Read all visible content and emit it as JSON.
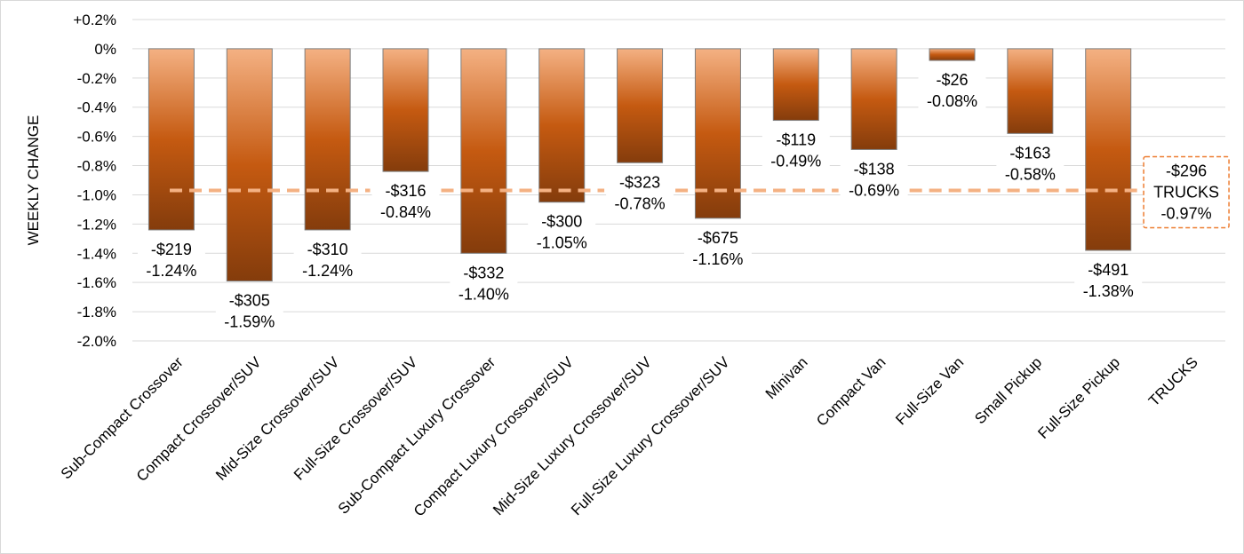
{
  "chart_data": {
    "type": "bar",
    "ylabel": "WEEKLY CHANGE",
    "ylim": [
      -2.0,
      0.2
    ],
    "y_ticks": [
      0.2,
      0.0,
      -0.2,
      -0.4,
      -0.6,
      -0.8,
      -1.0,
      -1.2,
      -1.4,
      -1.6,
      -1.8,
      -2.0
    ],
    "y_tick_labels": [
      "+0.2%",
      "0%",
      "-0.2%",
      "-0.4%",
      "-0.6%",
      "-0.8%",
      "-1.0%",
      "-1.2%",
      "-1.4%",
      "-1.6%",
      "-1.8%",
      "-2.0%"
    ],
    "grid": true,
    "categories": [
      "Sub-Compact Crossover",
      "Compact Crossover/SUV",
      "Mid-Size Crossover/SUV",
      "Full-Size Crossover/SUV",
      "Sub-Compact Luxury Crossover",
      "Compact Luxury Crossover/SUV",
      "Mid-Size Luxury Crossover/SUV",
      "Full-Size Luxury Crossover/SUV",
      "Minivan",
      "Compact Van",
      "Full-Size Van",
      "Small Pickup",
      "Full-Size Pickup",
      "TRUCKS"
    ],
    "values": [
      -1.24,
      -1.59,
      -1.24,
      -0.84,
      -1.4,
      -1.05,
      -0.78,
      -1.16,
      -0.49,
      -0.69,
      -0.08,
      -0.58,
      -1.38,
      null
    ],
    "dollar_labels": [
      "-$219",
      "-$305",
      "-$310",
      "-$316",
      "-$332",
      "-$300",
      "-$323",
      "-$675",
      "-$119",
      "-$138",
      "-$26",
      "-$163",
      "-$491"
    ],
    "percent_labels": [
      "-1.24%",
      "-1.59%",
      "-1.24%",
      "-0.84%",
      "-1.40%",
      "-1.05%",
      "-0.78%",
      "-1.16%",
      "-0.49%",
      "-0.69%",
      "-0.08%",
      "-0.58%",
      "-1.38%"
    ],
    "reference_line": {
      "value": -0.97,
      "labels": [
        "-$296",
        "TRUCKS",
        "-0.97%"
      ]
    },
    "colors": {
      "bar_top": "#f4b183",
      "bar_mid": "#c55a11",
      "bar_bottom": "#843c0c",
      "bar_stroke": "#7f7f7f",
      "reference": "#f4b183",
      "reference_box": "#ed7d31",
      "grid": "#d9d9d9"
    }
  }
}
